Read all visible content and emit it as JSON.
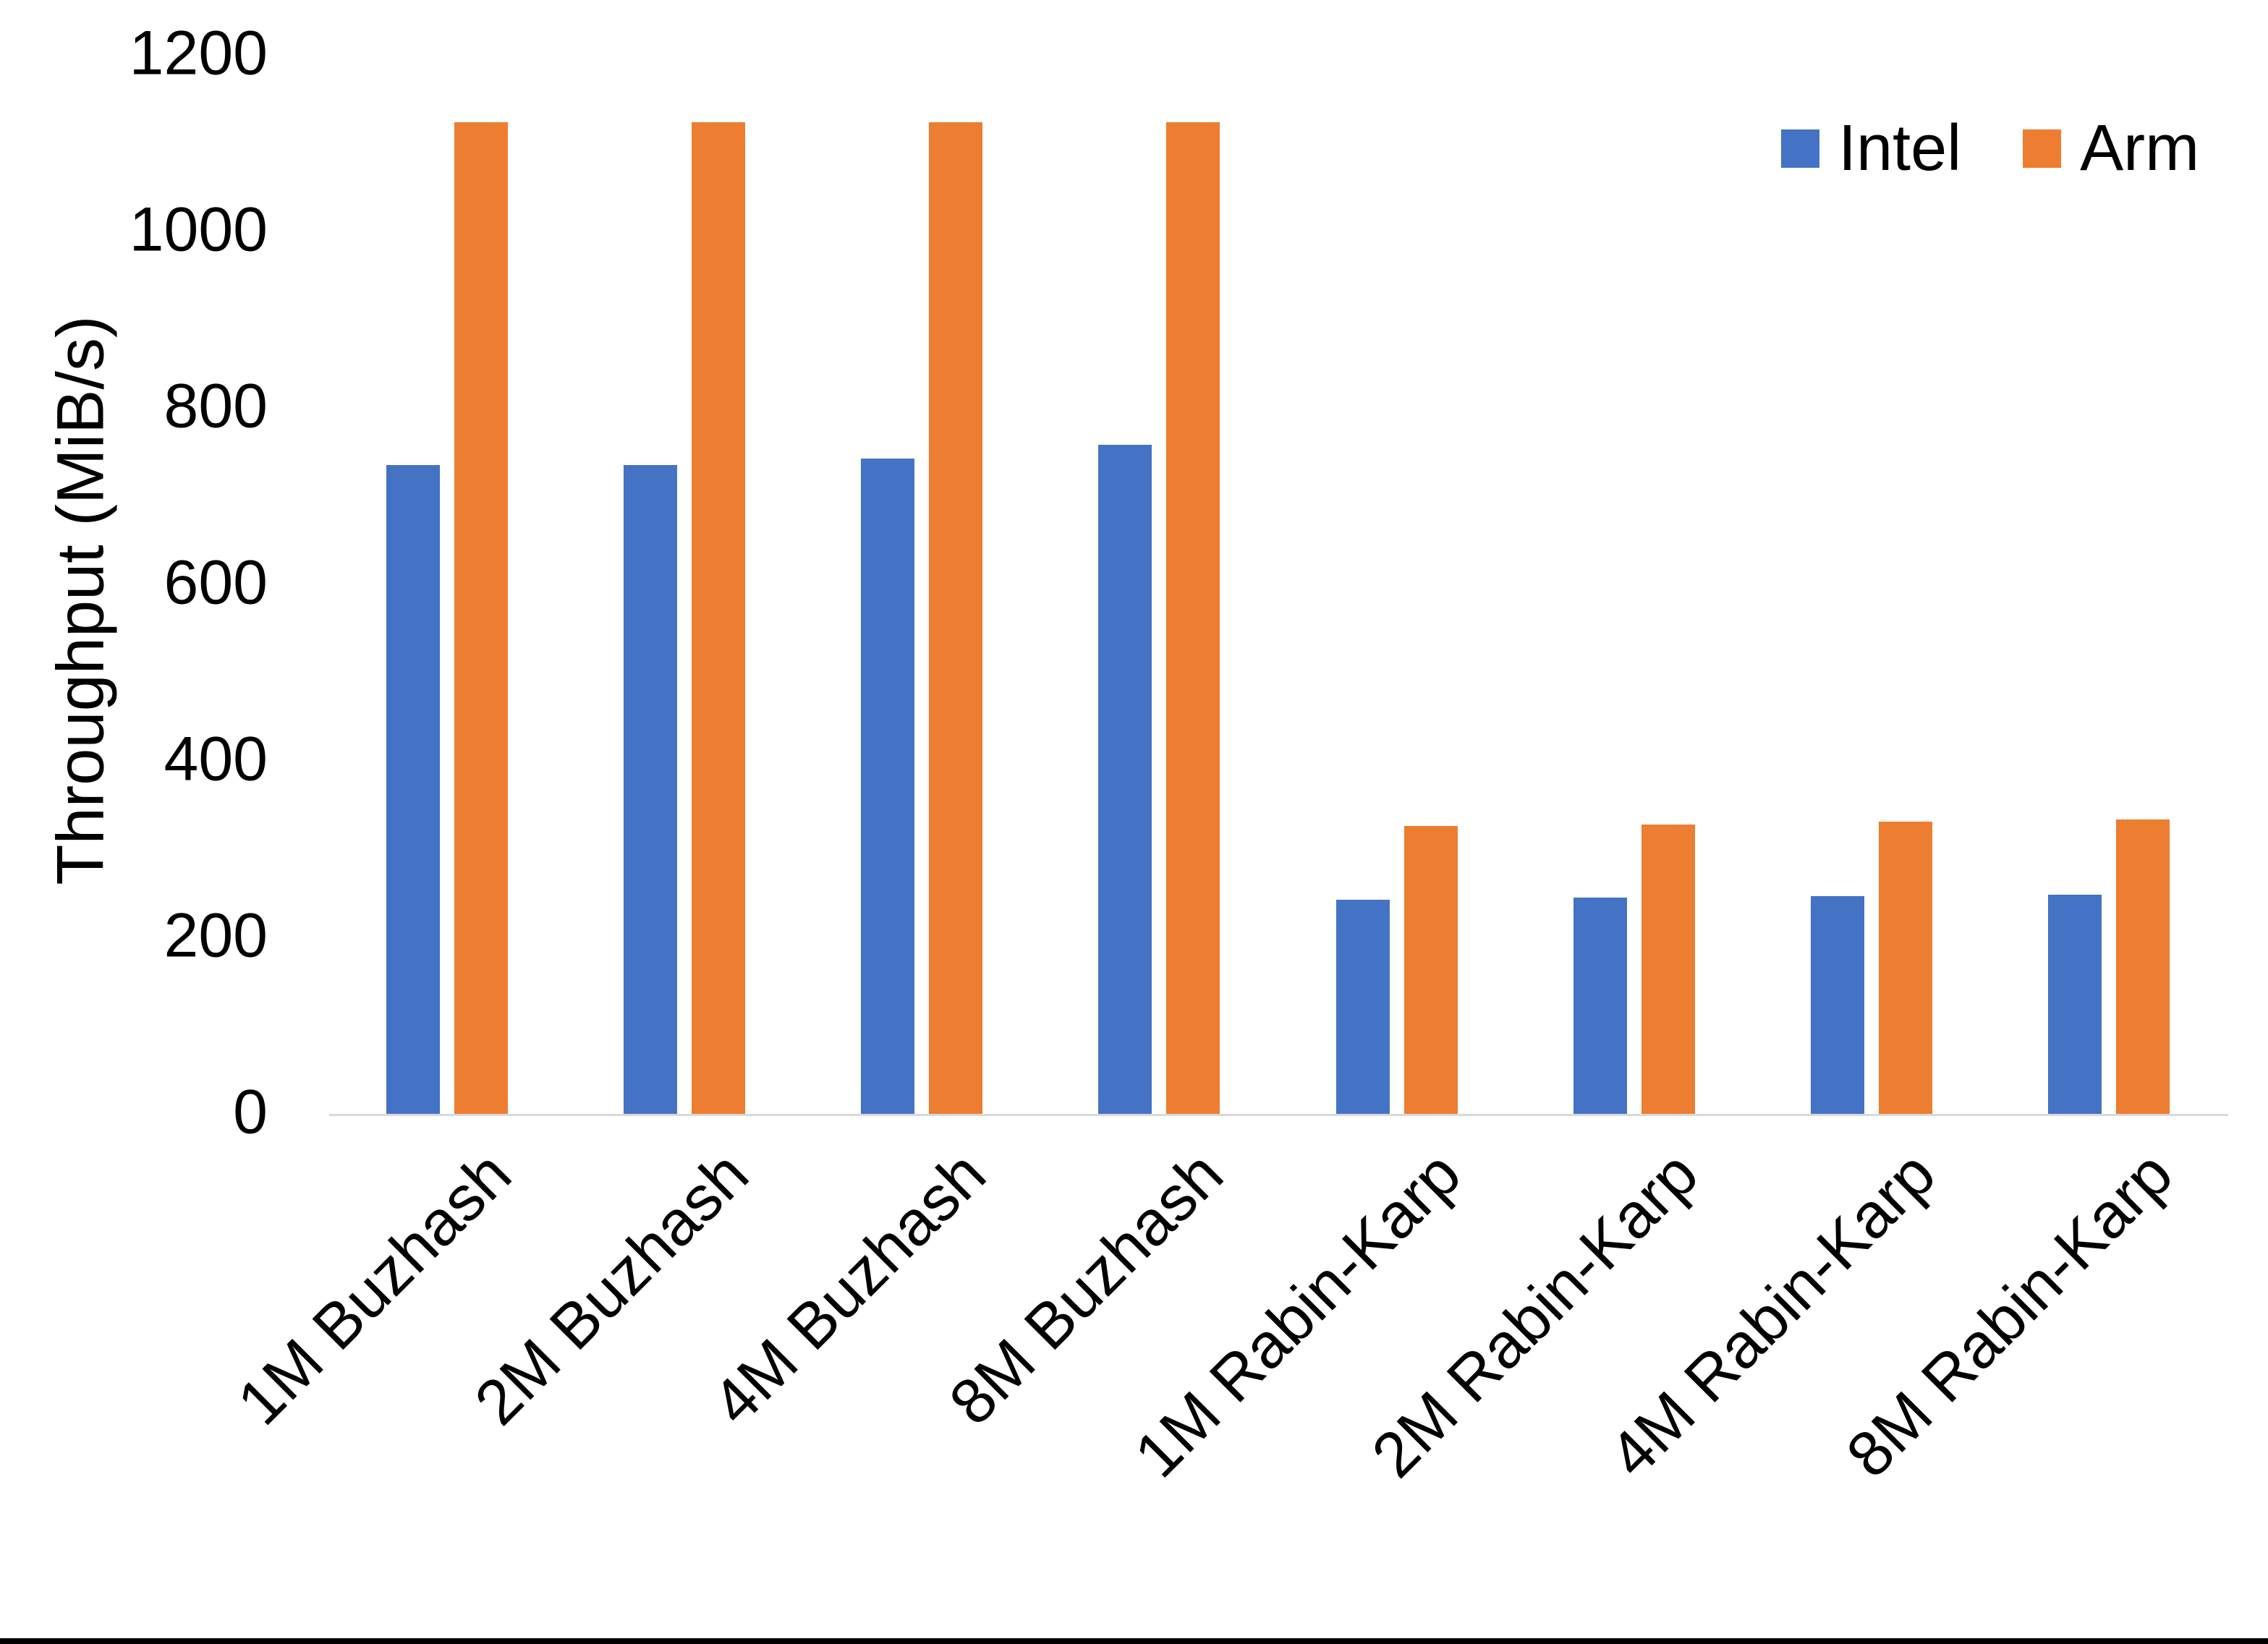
{
  "chart_data": {
    "type": "bar",
    "title": "",
    "categories": [
      "1M Buzhash",
      "2M Buzhash",
      "4M Buzhash",
      "8M Buzhash",
      "1M Rabin-Karp",
      "2M Rabin-Karp",
      "4M Rabin-Karp",
      "8M Rabin-Karp"
    ],
    "series": [
      {
        "name": "Intel",
        "color": "#4472C4",
        "values": [
          735,
          735,
          743,
          758,
          243,
          245,
          247,
          248
        ]
      },
      {
        "name": "Arm",
        "color": "#ED7D31",
        "values": [
          1124,
          1124,
          1124,
          1124,
          326,
          328,
          331,
          334
        ]
      }
    ],
    "ylabel": "Throughput (MiB/s)",
    "yticks": [
      0,
      200,
      400,
      600,
      800,
      1000,
      1200
    ],
    "ylim": [
      0,
      1200
    ],
    "grid": false,
    "legend_position": "top-right",
    "legend_labels": [
      "Intel",
      "Arm"
    ],
    "axis_color": "#D9D9D9",
    "text_color": "#000000",
    "bottom_frame_color": "#000000"
  }
}
